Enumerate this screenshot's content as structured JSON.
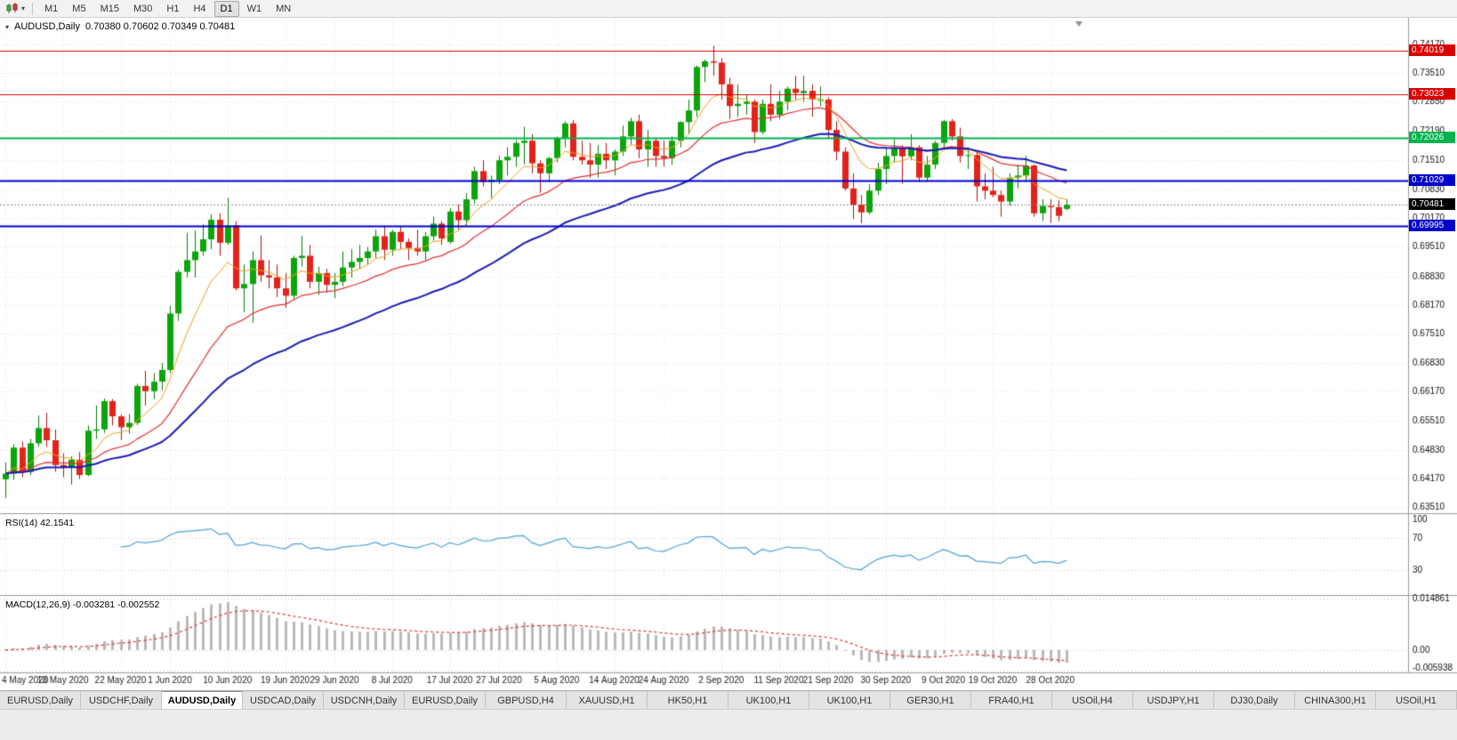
{
  "toolbar": {
    "timeframes": [
      "M1",
      "M5",
      "M15",
      "M30",
      "H1",
      "H4",
      "D1",
      "W1",
      "MN"
    ],
    "active_timeframe": "D1"
  },
  "chart": {
    "title": "AUDUSD,Daily",
    "ohlc_text": "0.70380 0.70602 0.70349 0.70481"
  },
  "chart_data": {
    "type": "candlestick",
    "symbol": "AUDUSD",
    "period": "Daily",
    "open": "0.70380",
    "high": "0.70602",
    "low": "0.70349",
    "close": "0.70481",
    "y_axis": {
      "y_max": 0.74742,
      "y_min": 0.6339,
      "tick_labels": [
        "0.74170",
        "0.73510",
        "0.72850",
        "0.72190",
        "0.71510",
        "0.70830",
        "0.70170",
        "0.69510",
        "0.68830",
        "0.68170",
        "0.67510",
        "0.66830",
        "0.66170",
        "0.65510",
        "0.64830",
        "0.64170",
        "0.63510"
      ]
    },
    "x_ticks": [
      {
        "label": "4 May 2020",
        "i": 0
      },
      {
        "label": "13 May 2020",
        "i": 7
      },
      {
        "label": "22 May 2020",
        "i": 14
      },
      {
        "label": "1 Jun 2020",
        "i": 20
      },
      {
        "label": "10 Jun 2020",
        "i": 27
      },
      {
        "label": "19 Jun 2020",
        "i": 34
      },
      {
        "label": "29 Jun 2020",
        "i": 40
      },
      {
        "label": "8 Jul 2020",
        "i": 47
      },
      {
        "label": "17 Jul 2020",
        "i": 54
      },
      {
        "label": "27 Jul 2020",
        "i": 60
      },
      {
        "label": "5 Aug 2020",
        "i": 67
      },
      {
        "label": "14 Aug 2020",
        "i": 74
      },
      {
        "label": "24 Aug 2020",
        "i": 80
      },
      {
        "label": "2 Sep 2020",
        "i": 87
      },
      {
        "label": "11 Sep 2020",
        "i": 94
      },
      {
        "label": "21 Sep 2020",
        "i": 100
      },
      {
        "label": "30 Sep 2020",
        "i": 107
      },
      {
        "label": "9 Oct 2020",
        "i": 114
      },
      {
        "label": "19 Oct 2020",
        "i": 120
      },
      {
        "label": "28 Oct 2020",
        "i": 127
      }
    ],
    "candles": [
      [
        0.6415,
        0.6454,
        0.6372,
        0.6428
      ],
      [
        0.6428,
        0.6496,
        0.6414,
        0.6488
      ],
      [
        0.6488,
        0.6502,
        0.642,
        0.6432
      ],
      [
        0.6432,
        0.6508,
        0.6425,
        0.6498
      ],
      [
        0.6498,
        0.6562,
        0.649,
        0.6533
      ],
      [
        0.6533,
        0.6568,
        0.6489,
        0.6505
      ],
      [
        0.6505,
        0.653,
        0.6432,
        0.6448
      ],
      [
        0.6448,
        0.6475,
        0.642,
        0.6442
      ],
      [
        0.6442,
        0.6468,
        0.6403,
        0.646
      ],
      [
        0.646,
        0.6478,
        0.6416,
        0.6425
      ],
      [
        0.6425,
        0.6539,
        0.6422,
        0.6527
      ],
      [
        0.6527,
        0.6585,
        0.6508,
        0.653
      ],
      [
        0.653,
        0.6601,
        0.6522,
        0.6595
      ],
      [
        0.6595,
        0.66,
        0.6539,
        0.656
      ],
      [
        0.656,
        0.6565,
        0.6505,
        0.6535
      ],
      [
        0.6535,
        0.6565,
        0.652,
        0.6545
      ],
      [
        0.6545,
        0.6635,
        0.654,
        0.663
      ],
      [
        0.663,
        0.6665,
        0.6585,
        0.6618
      ],
      [
        0.6618,
        0.666,
        0.66,
        0.664
      ],
      [
        0.664,
        0.6683,
        0.662,
        0.6667
      ],
      [
        0.6667,
        0.6815,
        0.666,
        0.6797
      ],
      [
        0.6797,
        0.6898,
        0.678,
        0.6893
      ],
      [
        0.6893,
        0.6983,
        0.688,
        0.692
      ],
      [
        0.692,
        0.6988,
        0.688,
        0.694
      ],
      [
        0.694,
        0.7003,
        0.693,
        0.6968
      ],
      [
        0.6968,
        0.7025,
        0.6945,
        0.7013
      ],
      [
        0.7013,
        0.7028,
        0.693,
        0.696
      ],
      [
        0.696,
        0.7064,
        0.6955,
        0.7
      ],
      [
        0.7,
        0.701,
        0.685,
        0.6855
      ],
      [
        0.6855,
        0.691,
        0.68,
        0.6865
      ],
      [
        0.6865,
        0.694,
        0.6776,
        0.692
      ],
      [
        0.692,
        0.6977,
        0.687,
        0.6885
      ],
      [
        0.6885,
        0.692,
        0.6855,
        0.688
      ],
      [
        0.688,
        0.691,
        0.6835,
        0.6855
      ],
      [
        0.6855,
        0.689,
        0.681,
        0.6838
      ],
      [
        0.6838,
        0.693,
        0.683,
        0.6925
      ],
      [
        0.6925,
        0.6976,
        0.6905,
        0.693
      ],
      [
        0.693,
        0.6955,
        0.6855,
        0.687
      ],
      [
        0.687,
        0.6905,
        0.684,
        0.689
      ],
      [
        0.689,
        0.69,
        0.6845,
        0.6863
      ],
      [
        0.6863,
        0.689,
        0.6832,
        0.687
      ],
      [
        0.687,
        0.694,
        0.686,
        0.6903
      ],
      [
        0.6903,
        0.6945,
        0.688,
        0.6916
      ],
      [
        0.6916,
        0.6955,
        0.69,
        0.6925
      ],
      [
        0.6925,
        0.695,
        0.691,
        0.694
      ],
      [
        0.694,
        0.699,
        0.6925,
        0.6975
      ],
      [
        0.6975,
        0.6998,
        0.692,
        0.6944
      ],
      [
        0.6944,
        0.699,
        0.693,
        0.6985
      ],
      [
        0.6985,
        0.6998,
        0.6945,
        0.6962
      ],
      [
        0.6962,
        0.697,
        0.692,
        0.6948
      ],
      [
        0.6948,
        0.699,
        0.693,
        0.694
      ],
      [
        0.694,
        0.6985,
        0.692,
        0.6975
      ],
      [
        0.6975,
        0.702,
        0.6965,
        0.7004
      ],
      [
        0.7004,
        0.701,
        0.6955,
        0.697
      ],
      [
        0.6962,
        0.704,
        0.6958,
        0.7032
      ],
      [
        0.7032,
        0.7048,
        0.699,
        0.7012
      ],
      [
        0.7012,
        0.7074,
        0.7,
        0.706
      ],
      [
        0.706,
        0.7135,
        0.705,
        0.7125
      ],
      [
        0.7125,
        0.715,
        0.709,
        0.71
      ],
      [
        0.71,
        0.7115,
        0.7063,
        0.7105
      ],
      [
        0.7105,
        0.716,
        0.7095,
        0.715
      ],
      [
        0.715,
        0.718,
        0.7115,
        0.7158
      ],
      [
        0.7158,
        0.7197,
        0.7135,
        0.719
      ],
      [
        0.719,
        0.7227,
        0.714,
        0.7195
      ],
      [
        0.7195,
        0.721,
        0.712,
        0.7143
      ],
      [
        0.7143,
        0.715,
        0.7075,
        0.712
      ],
      [
        0.712,
        0.7158,
        0.71,
        0.7155
      ],
      [
        0.7155,
        0.7205,
        0.7145,
        0.72
      ],
      [
        0.72,
        0.724,
        0.718,
        0.7235
      ],
      [
        0.7235,
        0.7243,
        0.715,
        0.7158
      ],
      [
        0.7158,
        0.7195,
        0.714,
        0.715
      ],
      [
        0.715,
        0.719,
        0.711,
        0.714
      ],
      [
        0.714,
        0.7185,
        0.711,
        0.7165
      ],
      [
        0.7165,
        0.719,
        0.713,
        0.715
      ],
      [
        0.715,
        0.7175,
        0.7115,
        0.717
      ],
      [
        0.717,
        0.723,
        0.716,
        0.7205
      ],
      [
        0.7205,
        0.7248,
        0.7185,
        0.724
      ],
      [
        0.724,
        0.7255,
        0.7155,
        0.7175
      ],
      [
        0.7175,
        0.722,
        0.7135,
        0.7195
      ],
      [
        0.7195,
        0.72,
        0.7135,
        0.716
      ],
      [
        0.716,
        0.7195,
        0.7135,
        0.7155
      ],
      [
        0.7155,
        0.7205,
        0.714,
        0.7195
      ],
      [
        0.7195,
        0.724,
        0.718,
        0.7238
      ],
      [
        0.7238,
        0.729,
        0.721,
        0.7265
      ],
      [
        0.7265,
        0.7368,
        0.725,
        0.7365
      ],
      [
        0.7365,
        0.7382,
        0.733,
        0.7378
      ],
      [
        0.7378,
        0.7414,
        0.7345,
        0.7375
      ],
      [
        0.7375,
        0.7385,
        0.729,
        0.7325
      ],
      [
        0.7325,
        0.734,
        0.7245,
        0.7275
      ],
      [
        0.7275,
        0.7325,
        0.725,
        0.728
      ],
      [
        0.728,
        0.73,
        0.7255,
        0.7285
      ],
      [
        0.7285,
        0.729,
        0.719,
        0.7215
      ],
      [
        0.7215,
        0.729,
        0.721,
        0.728
      ],
      [
        0.728,
        0.7325,
        0.724,
        0.7255
      ],
      [
        0.7255,
        0.731,
        0.7245,
        0.7285
      ],
      [
        0.7285,
        0.732,
        0.7265,
        0.7315
      ],
      [
        0.7315,
        0.7345,
        0.729,
        0.7305
      ],
      [
        0.7305,
        0.7345,
        0.7285,
        0.731
      ],
      [
        0.731,
        0.7325,
        0.725,
        0.729
      ],
      [
        0.729,
        0.732,
        0.7275,
        0.729
      ],
      [
        0.729,
        0.7295,
        0.72,
        0.722
      ],
      [
        0.722,
        0.724,
        0.715,
        0.717
      ],
      [
        0.717,
        0.718,
        0.708,
        0.7085
      ],
      [
        0.7085,
        0.712,
        0.7015,
        0.7048
      ],
      [
        0.7048,
        0.707,
        0.7005,
        0.703
      ],
      [
        0.703,
        0.7095,
        0.7025,
        0.708
      ],
      [
        0.708,
        0.7145,
        0.707,
        0.713
      ],
      [
        0.713,
        0.718,
        0.7095,
        0.716
      ],
      [
        0.716,
        0.7198,
        0.7145,
        0.7177
      ],
      [
        0.7177,
        0.7185,
        0.7096,
        0.7159
      ],
      [
        0.7159,
        0.721,
        0.715,
        0.718
      ],
      [
        0.718,
        0.7185,
        0.71,
        0.711
      ],
      [
        0.711,
        0.716,
        0.71,
        0.714
      ],
      [
        0.714,
        0.7195,
        0.713,
        0.719
      ],
      [
        0.719,
        0.7243,
        0.718,
        0.724
      ],
      [
        0.724,
        0.7245,
        0.7195,
        0.7205
      ],
      [
        0.7205,
        0.7225,
        0.7145,
        0.716
      ],
      [
        0.716,
        0.718,
        0.713,
        0.7162
      ],
      [
        0.7162,
        0.717,
        0.7055,
        0.709
      ],
      [
        0.709,
        0.712,
        0.706,
        0.708
      ],
      [
        0.708,
        0.7135,
        0.7065,
        0.707
      ],
      [
        0.707,
        0.708,
        0.702,
        0.7055
      ],
      [
        0.7055,
        0.712,
        0.7045,
        0.711
      ],
      [
        0.711,
        0.714,
        0.7085,
        0.7115
      ],
      [
        0.7115,
        0.716,
        0.71,
        0.7138
      ],
      [
        0.7138,
        0.714,
        0.702,
        0.7028
      ],
      [
        0.7028,
        0.706,
        0.701,
        0.7045
      ],
      [
        0.7045,
        0.706,
        0.7006,
        0.7042
      ],
      [
        0.7042,
        0.7058,
        0.701,
        0.7022
      ],
      [
        0.7038,
        0.70602,
        0.70349,
        0.70481
      ]
    ],
    "overlays": [
      {
        "name": "ma-fast",
        "type": "ema",
        "period": 8,
        "color": "#f0a11c",
        "width": 1
      },
      {
        "name": "ma-mid",
        "type": "ema",
        "period": 20,
        "color": "#e53030",
        "width": 1.2
      },
      {
        "name": "ma-slow",
        "type": "ema",
        "period": 40,
        "color": "#1a1ab8",
        "width": 2
      }
    ],
    "levels": [
      {
        "label": "0.74019",
        "value": 0.74019,
        "color": "#d80000",
        "width": 1
      },
      {
        "label": "0.73023",
        "value": 0.73023,
        "color": "#d80000",
        "width": 1
      },
      {
        "label": "0.72026",
        "value": 0.72026,
        "color": "#00b34d",
        "width": 2
      },
      {
        "label": "0.71029",
        "value": 0.71029,
        "color": "#0000cc",
        "width": 2
      },
      {
        "label": "0.69995",
        "value": 0.69995,
        "color": "#0000cc",
        "width": 2
      }
    ],
    "current_price": {
      "label": "0.70481",
      "value": 0.70481,
      "tag_color": "#000000"
    },
    "indicators": [
      {
        "name": "rsi",
        "label": "RSI(14) 42.1541",
        "period": 14,
        "value": "42.1541",
        "line_color": "#4aa4d8",
        "levels": [
          70,
          30
        ],
        "axis_ticks": [
          {
            "label": "100",
            "v": 100
          },
          {
            "label": "70",
            "v": 70
          },
          {
            "label": "30",
            "v": 30
          }
        ]
      },
      {
        "name": "macd",
        "label": "MACD(12,26,9) -0.003281 -0.002552",
        "fast": 12,
        "slow": 26,
        "signal_period": 9,
        "values": [
          "-0.003281",
          "-0.002552"
        ],
        "histogram_color": "#b9b9b9",
        "signal_color": "#e53030",
        "y_max": 0.0155,
        "y_min": -0.0062,
        "grid_values": [
          0.014861,
          0,
          -0.005938
        ],
        "axis_ticks": [
          {
            "label": "0.014861",
            "v": 0.014861
          },
          {
            "label": "0.00",
            "v": 0
          },
          {
            "label": "-0.005938",
            "v": -0.005938
          }
        ]
      }
    ]
  },
  "tabs": {
    "items": [
      {
        "label": "EURUSD,Daily",
        "active": false
      },
      {
        "label": "USDCHF,Daily",
        "active": false
      },
      {
        "label": "AUDUSD,Daily",
        "active": true
      },
      {
        "label": "USDCAD,Daily",
        "active": false
      },
      {
        "label": "USDCNH,Daily",
        "active": false
      },
      {
        "label": "EURUSD,Daily",
        "active": false
      },
      {
        "label": "GBPUSD,H4",
        "active": false
      },
      {
        "label": "XAUUSD,H1",
        "active": false
      },
      {
        "label": "HK50,H1",
        "active": false
      },
      {
        "label": "UK100,H1",
        "active": false
      },
      {
        "label": "UK100,H1",
        "active": false
      },
      {
        "label": "GER30,H1",
        "active": false
      },
      {
        "label": "FRA40,H1",
        "active": false
      },
      {
        "label": "USOil,H4",
        "active": false
      },
      {
        "label": "USDJPY,H1",
        "active": false
      },
      {
        "label": "DJ30,Daily",
        "active": false
      },
      {
        "label": "CHINA300,H1",
        "active": false
      },
      {
        "label": "USOil,H1",
        "active": false
      }
    ]
  }
}
